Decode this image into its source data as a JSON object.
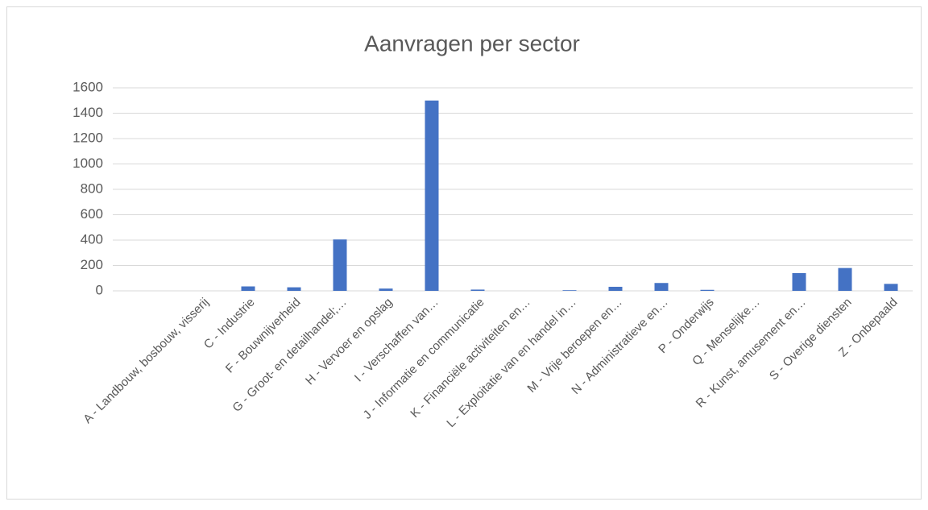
{
  "chart_data": {
    "type": "bar",
    "title": "Aanvragen per sector",
    "categories": [
      "A - Landbouw, bosbouw, visserij",
      "C - Industrie",
      "F - Bouwnijverheid",
      "G - Groot- en detailhandel;…",
      "H - Vervoer en opslag",
      "I - Verschaffen van…",
      "J - Informatie en communicatie",
      "K - Financiële activiteiten en…",
      "L - Exploitatie van en handel in…",
      "M - Vrije beroepen en…",
      "N - Administratieve en…",
      "P - Onderwijs",
      "Q - Menselijke…",
      "R - Kunst, amusement en…",
      "S - Overige diensten",
      "Z - Onbepaald"
    ],
    "values": [
      0,
      35,
      28,
      405,
      18,
      1500,
      10,
      0,
      5,
      32,
      62,
      8,
      0,
      140,
      180,
      55
    ],
    "color": "#4472c4",
    "ylim": [
      0,
      1600
    ],
    "yticks": [
      0,
      200,
      400,
      600,
      800,
      1000,
      1200,
      1400,
      1600
    ],
    "grid": true
  }
}
